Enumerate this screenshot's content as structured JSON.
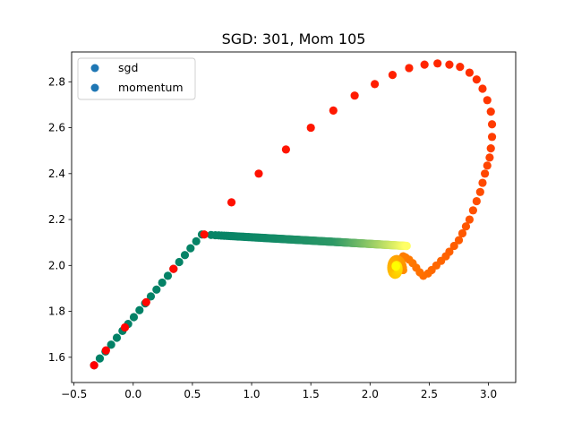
{
  "chart_data": {
    "type": "scatter",
    "title": "SGD: 301, Mom 105",
    "xlabel": "",
    "ylabel": "",
    "xlim": [
      -0.52,
      3.23
    ],
    "ylim": [
      1.49,
      2.93
    ],
    "xticks": [
      -0.5,
      0.0,
      0.5,
      1.0,
      1.5,
      2.0,
      2.5,
      3.0
    ],
    "xtick_labels": [
      "−0.5",
      "0.0",
      "0.5",
      "1.0",
      "1.5",
      "2.0",
      "2.5",
      "3.0"
    ],
    "yticks": [
      1.6,
      1.8,
      2.0,
      2.2,
      2.4,
      2.6,
      2.8
    ],
    "ytick_labels": [
      "1.6",
      "1.8",
      "2.0",
      "2.2",
      "2.4",
      "2.6",
      "2.8"
    ],
    "grid": false,
    "legend": {
      "placement": "upper-left",
      "entries": [
        {
          "label": "sgd",
          "color": "#1f77b4"
        },
        {
          "label": "momentum",
          "color": "#1f77b4"
        }
      ]
    },
    "series": [
      {
        "name": "sgd",
        "count": 301,
        "start": [
          -0.33,
          1.565
        ],
        "corner": [
          0.58,
          2.135
        ],
        "end": [
          2.31,
          2.085
        ],
        "leg1_points": 20,
        "colormap": "summer",
        "colors": {
          "start": "#008066",
          "mid": "#2e9966",
          "end": "#ffff66"
        }
      },
      {
        "name": "momentum",
        "count": 105,
        "colormap": "autumn",
        "colors": {
          "start": "#ff0000",
          "end": "#ffff00"
        },
        "x": [
          -0.33,
          -0.23,
          -0.07,
          0.11,
          0.34,
          0.6,
          0.83,
          1.06,
          1.29,
          1.5,
          1.69,
          1.87,
          2.04,
          2.19,
          2.33,
          2.46,
          2.57,
          2.67,
          2.76,
          2.84,
          2.9,
          2.95,
          2.99,
          3.02,
          3.03,
          3.03,
          3.02,
          3.01,
          2.99,
          2.97,
          2.95,
          2.93,
          2.9,
          2.87,
          2.84,
          2.81,
          2.78,
          2.75,
          2.71,
          2.67,
          2.64,
          2.6,
          2.56,
          2.52,
          2.49,
          2.45,
          2.42,
          2.39,
          2.36,
          2.33,
          2.3,
          2.28,
          2.26,
          2.24,
          2.23,
          2.22,
          2.22,
          2.22
        ],
        "y": [
          1.565,
          1.63,
          1.73,
          1.84,
          1.985,
          2.135,
          2.275,
          2.4,
          2.505,
          2.6,
          2.675,
          2.74,
          2.79,
          2.83,
          2.86,
          2.875,
          2.88,
          2.875,
          2.865,
          2.84,
          2.81,
          2.77,
          2.72,
          2.67,
          2.615,
          2.56,
          2.51,
          2.47,
          2.435,
          2.4,
          2.36,
          2.32,
          2.28,
          2.24,
          2.2,
          2.17,
          2.14,
          2.11,
          2.085,
          2.06,
          2.04,
          2.02,
          2.0,
          1.98,
          1.965,
          1.955,
          1.97,
          1.99,
          2.01,
          2.025,
          2.035,
          2.04,
          2.02,
          2.0,
          1.985,
          1.975,
          1.98,
          1.995
        ]
      }
    ]
  }
}
